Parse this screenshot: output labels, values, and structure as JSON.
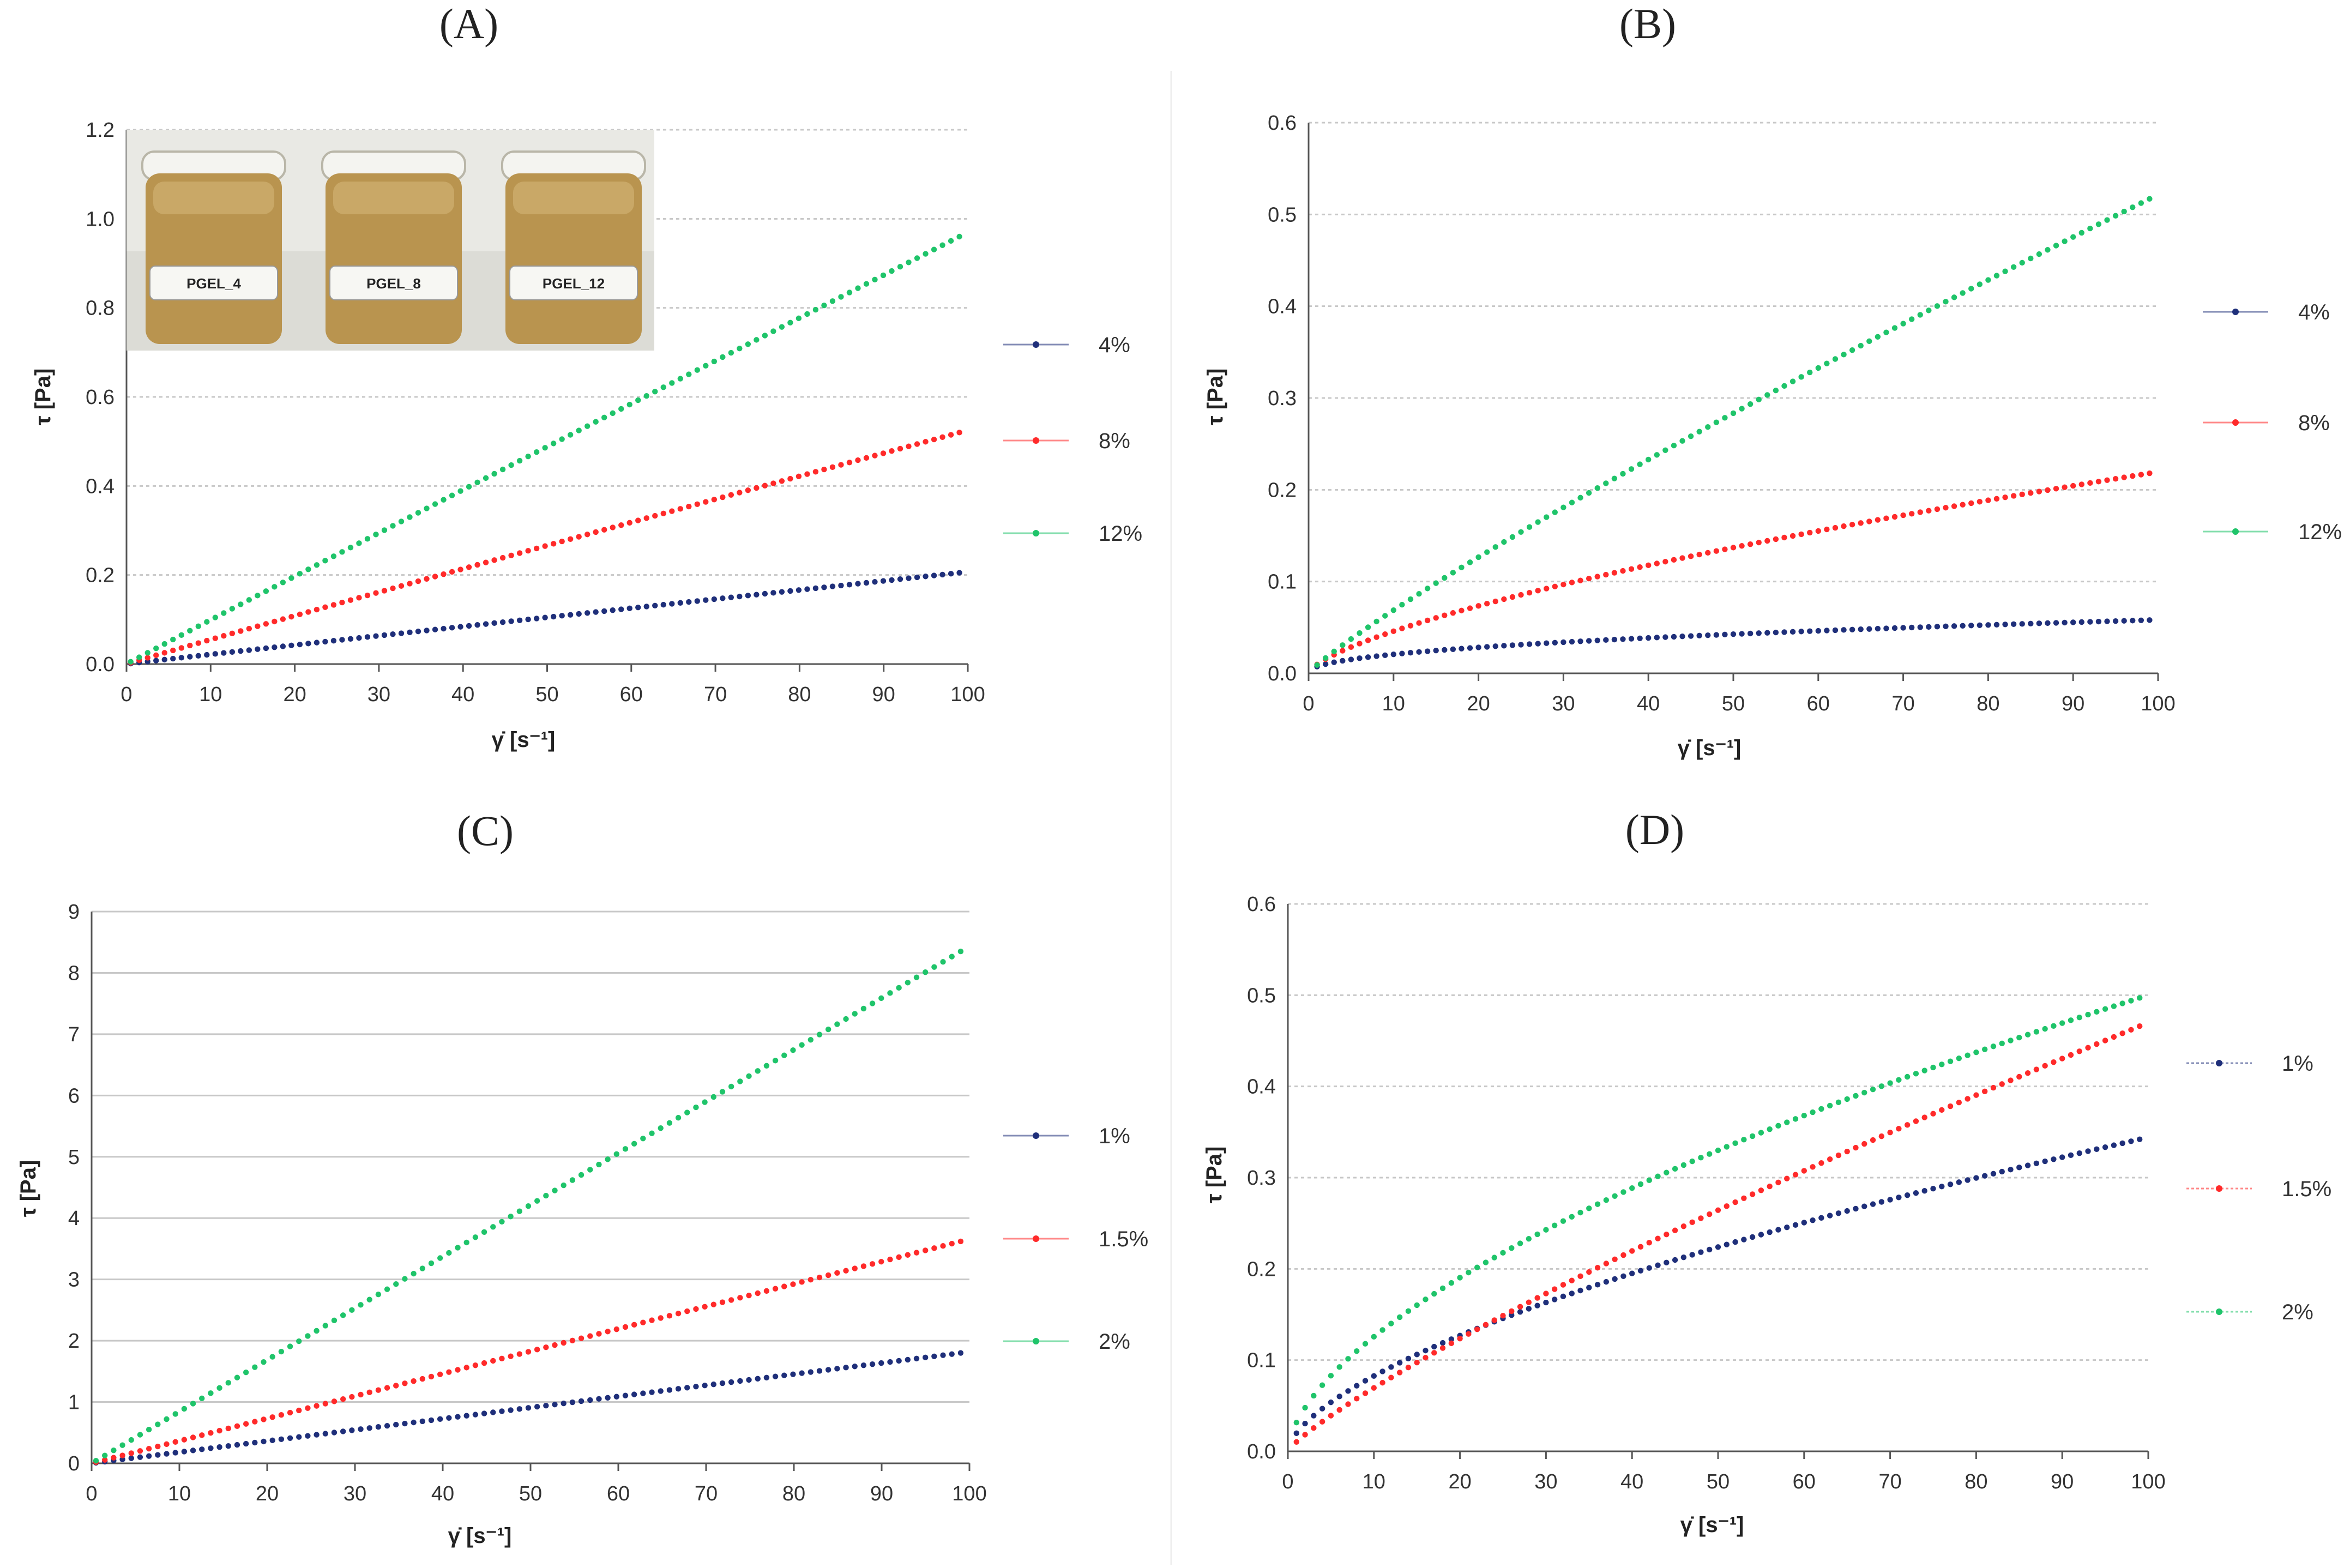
{
  "colors": {
    "series_1": "#1f2f7a",
    "series_2": "#ff2a2a",
    "series_3": "#1fc46a",
    "grid": "#c8c8c8",
    "axis": "#555555"
  },
  "photo": {
    "labels": [
      "PGEL_4",
      "PGEL_8",
      "PGEL_12"
    ]
  },
  "chart_data": [
    {
      "panel": "(A)",
      "type": "scatter",
      "title": "(A)",
      "xlabel": "γ̇ [s⁻¹]",
      "ylabel": "τ [Pa]",
      "xlim": [
        0,
        100
      ],
      "ylim": [
        0,
        1.2
      ],
      "x_ticks": [
        "0",
        "10",
        "20",
        "30",
        "40",
        "50",
        "60",
        "70",
        "80",
        "90",
        "100"
      ],
      "y_ticks": [
        "0.0",
        "0.2",
        "0.4",
        "0.6",
        "0.8",
        "1.0",
        "1.2"
      ],
      "y_tick_values": [
        0,
        0.2,
        0.4,
        0.6,
        0.8,
        1.0,
        1.2
      ],
      "grid": "dashed",
      "legend_position": "right",
      "series": [
        {
          "name": "4%",
          "color": "#1f2f7a",
          "y_end": 0.205,
          "n": 0.98,
          "x_start": 0.5,
          "x_end": 99
        },
        {
          "name": "8%",
          "color": "#ff2a2a",
          "y_end": 0.52,
          "n": 0.98,
          "x_start": 0.5,
          "x_end": 99
        },
        {
          "name": "12%",
          "color": "#1fc46a",
          "y_end": 0.96,
          "n": 0.99,
          "x_start": 0.5,
          "x_end": 99
        }
      ]
    },
    {
      "panel": "(B)",
      "type": "scatter",
      "title": "(B)",
      "xlabel": "γ̇ [s⁻¹]",
      "ylabel": "τ [Pa]",
      "xlim": [
        0,
        100
      ],
      "ylim": [
        0,
        0.6
      ],
      "x_ticks": [
        "0",
        "10",
        "20",
        "30",
        "40",
        "50",
        "60",
        "70",
        "80",
        "90",
        "100"
      ],
      "y_ticks": [
        "0.0",
        "0.1",
        "0.2",
        "0.3",
        "0.4",
        "0.5",
        "0.6"
      ],
      "y_tick_values": [
        0,
        0.1,
        0.2,
        0.3,
        0.4,
        0.5,
        0.6
      ],
      "grid": "dashed",
      "legend_position": "right",
      "series": [
        {
          "name": "4%",
          "color": "#1f2f7a",
          "y_end": 0.058,
          "n": 0.45,
          "x_start": 1,
          "x_end": 99
        },
        {
          "name": "8%",
          "color": "#ff2a2a",
          "y_end": 0.218,
          "n": 0.68,
          "x_start": 1,
          "x_end": 99
        },
        {
          "name": "12%",
          "color": "#1fc46a",
          "y_end": 0.517,
          "n": 0.88,
          "x_start": 1,
          "x_end": 99
        }
      ]
    },
    {
      "panel": "(C)",
      "type": "scatter",
      "title": "(C)",
      "xlabel": "γ̇ [s⁻¹]",
      "ylabel": "τ [Pa]",
      "xlim": [
        0,
        100
      ],
      "ylim": [
        0,
        9
      ],
      "x_ticks": [
        "0",
        "10",
        "20",
        "30",
        "40",
        "50",
        "60",
        "70",
        "80",
        "90",
        "100"
      ],
      "y_ticks": [
        "0",
        "1",
        "2",
        "3",
        "4",
        "5",
        "6",
        "7",
        "8",
        "9"
      ],
      "y_tick_values": [
        0,
        1,
        2,
        3,
        4,
        5,
        6,
        7,
        8,
        9
      ],
      "grid": "solid",
      "legend_position": "right",
      "series": [
        {
          "name": "1%",
          "color": "#1f2f7a",
          "y_end": 1.8,
          "n": 1.0,
          "x_start": 0.5,
          "x_end": 99
        },
        {
          "name": "1.5%",
          "color": "#ff2a2a",
          "y_end": 3.62,
          "n": 1.0,
          "x_start": 0.5,
          "x_end": 99
        },
        {
          "name": "2%",
          "color": "#1fc46a",
          "y_end": 8.35,
          "n": 1.0,
          "x_start": 0.5,
          "x_end": 99
        }
      ]
    },
    {
      "panel": "(D)",
      "type": "scatter",
      "title": "(D)",
      "xlabel": "γ̇ [s⁻¹]",
      "ylabel": "τ [Pa]",
      "xlim": [
        0,
        100
      ],
      "ylim": [
        0,
        0.6
      ],
      "x_ticks": [
        "0",
        "10",
        "20",
        "30",
        "40",
        "50",
        "60",
        "70",
        "80",
        "90",
        "100"
      ],
      "y_ticks": [
        "0.0",
        "0.1",
        "0.2",
        "0.3",
        "0.4",
        "0.5",
        "0.6"
      ],
      "y_tick_values": [
        0,
        0.1,
        0.2,
        0.3,
        0.4,
        0.5,
        0.6
      ],
      "grid": "dashed",
      "legend_position": "right",
      "series": [
        {
          "name": "1%",
          "color": "#1f2f7a",
          "y_end": 0.342,
          "n": 0.62,
          "x_start": 1,
          "x_end": 99
        },
        {
          "name": "1.5%",
          "color": "#ff2a2a",
          "y_end": 0.466,
          "n": 0.83,
          "x_start": 1,
          "x_end": 99
        },
        {
          "name": "2%",
          "color": "#1fc46a",
          "y_end": 0.497,
          "n": 0.6,
          "x_start": 1,
          "x_end": 99
        }
      ]
    }
  ]
}
